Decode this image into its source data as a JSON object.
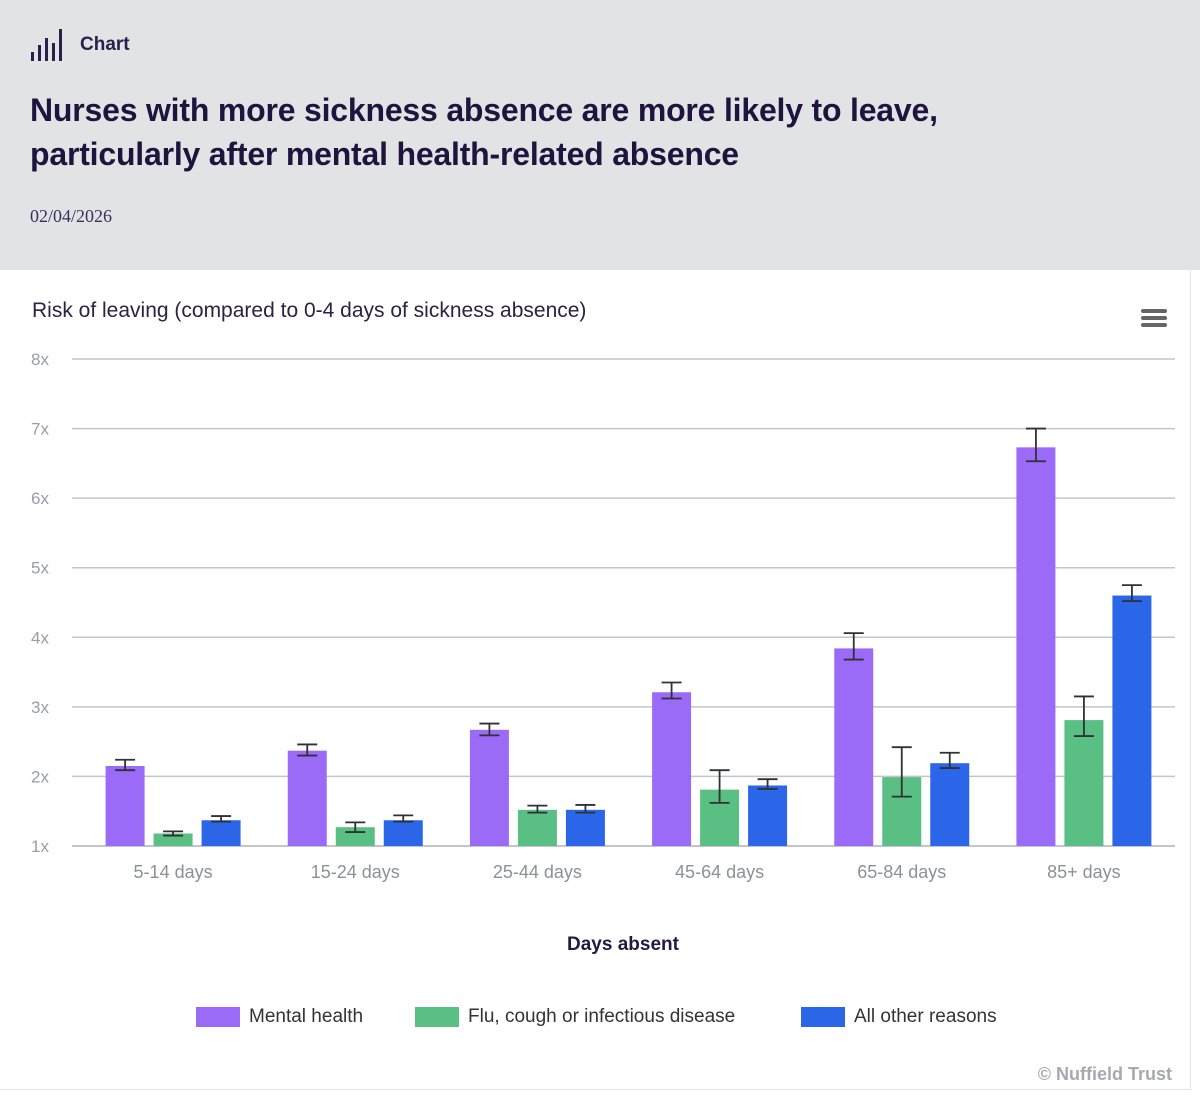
{
  "header": {
    "kicker_icon": "bar-chart-icon",
    "kicker": "Chart",
    "title": "Nurses with more sickness absence are more likely to leave, particularly after mental health-related absence",
    "date": "02/04/2026"
  },
  "menu": {
    "icon": "hamburger-menu-icon"
  },
  "credits": "© Nuffield Trust",
  "chart_data": {
    "type": "bar",
    "title": "Risk of leaving (compared to 0-4 days of sickness absence)",
    "xlabel": "Days absent",
    "ylabel": "",
    "ylim": [
      1,
      8
    ],
    "yticks": [
      1,
      2,
      3,
      4,
      5,
      6,
      7,
      8
    ],
    "ytick_labels": [
      "1x",
      "2x",
      "3x",
      "4x",
      "5x",
      "6x",
      "7x",
      "8x"
    ],
    "grid": true,
    "legend_position": "bottom",
    "categories": [
      "5-14 days",
      "15-24 days",
      "25-44 days",
      "45-64 days",
      "65-84 days",
      "85+ days"
    ],
    "series": [
      {
        "name": "Mental health",
        "color": "#9b6bf7",
        "values": [
          2.15,
          2.37,
          2.67,
          3.21,
          3.84,
          6.73
        ],
        "error_low": [
          2.09,
          2.3,
          2.59,
          3.12,
          3.68,
          6.53
        ],
        "error_high": [
          2.24,
          2.46,
          2.76,
          3.35,
          4.06,
          7.0
        ]
      },
      {
        "name": "Flu, cough or infectious disease",
        "color": "#5abf83",
        "values": [
          1.18,
          1.27,
          1.52,
          1.81,
          1.99,
          2.81
        ],
        "error_low": [
          1.15,
          1.2,
          1.48,
          1.62,
          1.71,
          2.58
        ],
        "error_high": [
          1.21,
          1.34,
          1.58,
          2.09,
          2.42,
          3.15
        ]
      },
      {
        "name": "All other reasons",
        "color": "#2b66e8",
        "values": [
          1.37,
          1.37,
          1.52,
          1.87,
          2.19,
          4.6
        ],
        "error_low": [
          1.35,
          1.35,
          1.48,
          1.82,
          2.12,
          4.52
        ],
        "error_high": [
          1.43,
          1.44,
          1.59,
          1.96,
          2.34,
          4.75
        ]
      }
    ]
  }
}
